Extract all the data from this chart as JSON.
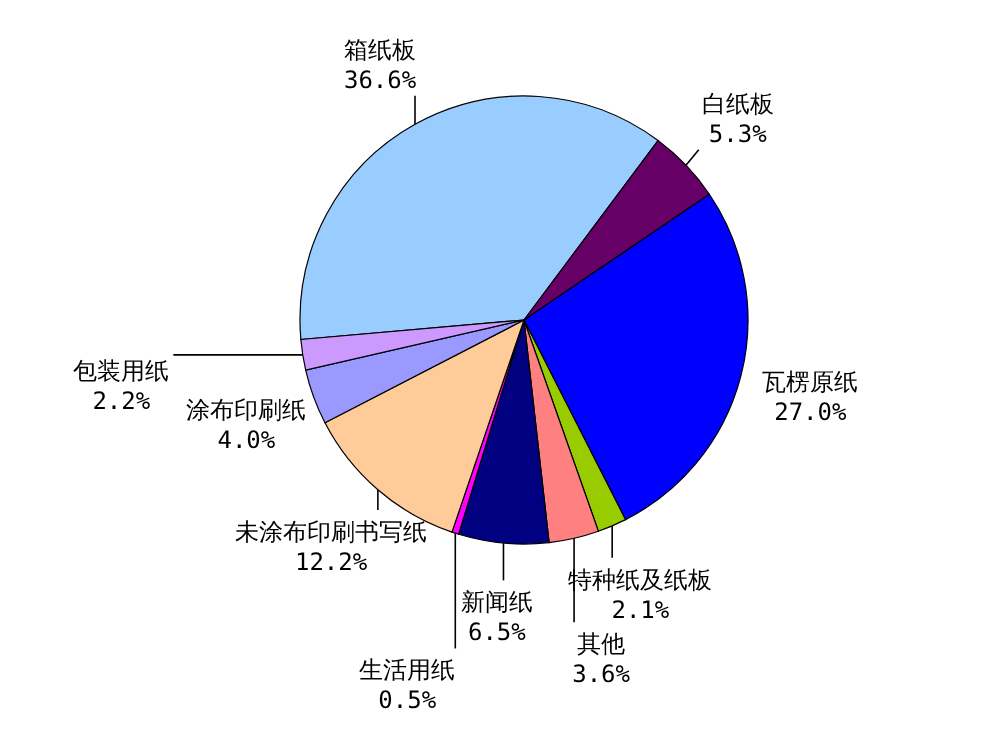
{
  "chart_data": {
    "type": "pie",
    "categories": [
      "箱纸板",
      "白纸板",
      "瓦楞原纸",
      "特种纸及纸板",
      "其他",
      "新闻纸",
      "生活用纸",
      "未涂布印刷书写纸",
      "涂布印刷纸",
      "包装用纸"
    ],
    "values": [
      36.6,
      5.3,
      27.0,
      2.1,
      3.6,
      6.5,
      0.5,
      12.2,
      4.0,
      2.2
    ],
    "colors": [
      "#99ccff",
      "#660066",
      "#0000ff",
      "#99cc00",
      "#ff8080",
      "#000080",
      "#ff00ff",
      "#ffcc99",
      "#9999ff",
      "#cc99ff"
    ],
    "value_labels": [
      "36.6%",
      "5.3%",
      "27.0%",
      "2.1%",
      "3.6%",
      "6.5%",
      "0.5%",
      "12.2%",
      "4.0%",
      "2.2%"
    ]
  }
}
